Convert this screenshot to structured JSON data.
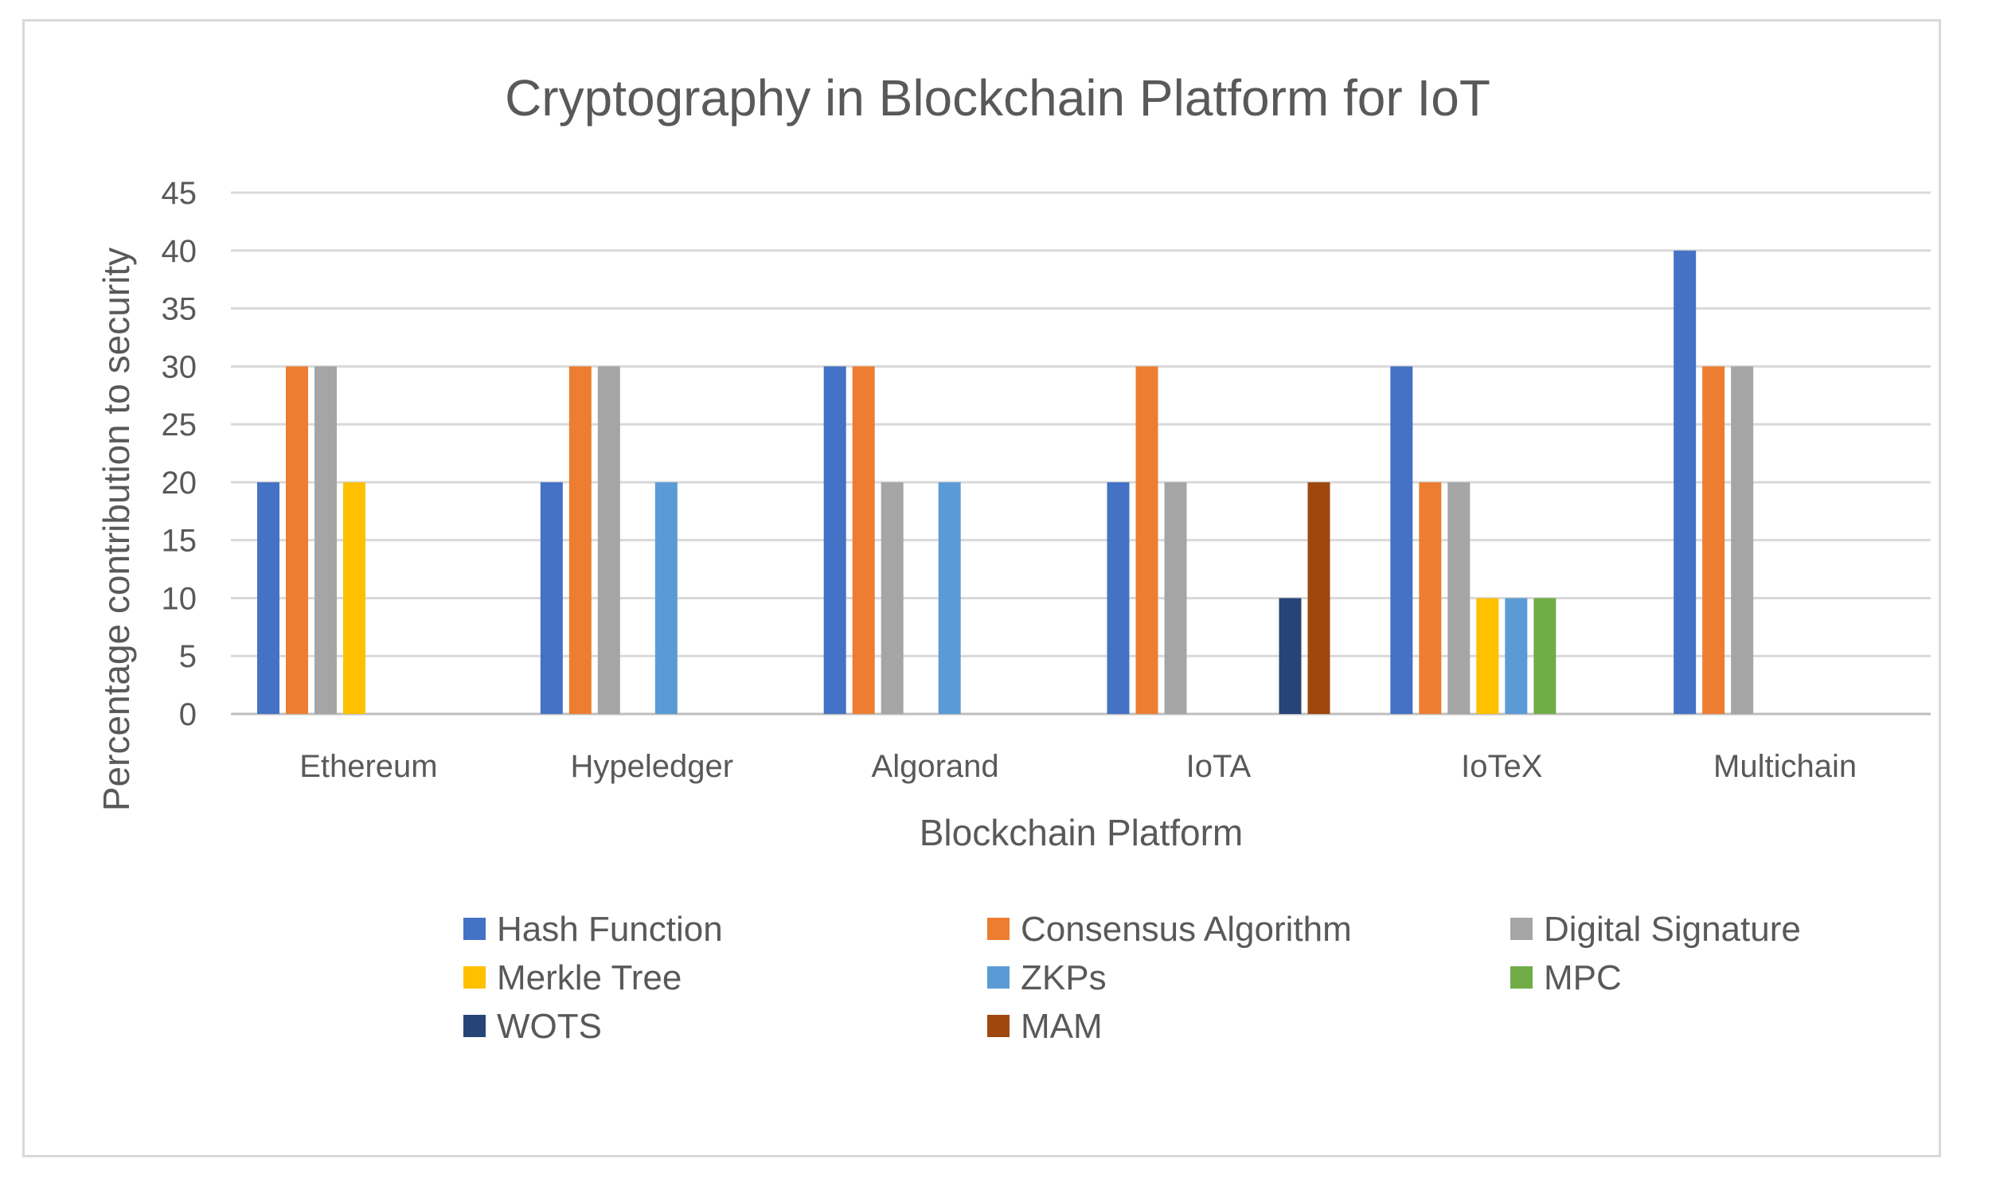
{
  "chart_data": {
    "type": "bar",
    "title": "Cryptography in Blockchain Platform for IoT",
    "xlabel": "Blockchain Platform",
    "ylabel": "Percentage contribution to security",
    "ylim": [
      0,
      45
    ],
    "yticks": [
      0,
      5,
      10,
      15,
      20,
      25,
      30,
      35,
      40,
      45
    ],
    "grid": true,
    "legend_position": "bottom",
    "categories": [
      "Ethereum",
      "Hypeledger",
      "Algorand",
      "IoTA",
      "IoTeX",
      "Multichain"
    ],
    "series": [
      {
        "name": "Hash Function",
        "color": "#4472C4",
        "values": [
          20,
          20,
          30,
          20,
          30,
          40
        ]
      },
      {
        "name": "Consensus Algorithm",
        "color": "#ED7D31",
        "values": [
          30,
          30,
          30,
          30,
          20,
          30
        ]
      },
      {
        "name": "Digital Signature",
        "color": "#A5A5A5",
        "values": [
          30,
          30,
          20,
          20,
          20,
          30
        ]
      },
      {
        "name": "Merkle Tree",
        "color": "#FFC000",
        "values": [
          20,
          0,
          0,
          0,
          10,
          0
        ]
      },
      {
        "name": "ZKPs",
        "color": "#5B9BD5",
        "values": [
          0,
          20,
          20,
          0,
          10,
          0
        ]
      },
      {
        "name": "MPC",
        "color": "#70AD47",
        "values": [
          0,
          0,
          0,
          0,
          10,
          0
        ]
      },
      {
        "name": "WOTS",
        "color": "#264478",
        "values": [
          0,
          0,
          0,
          10,
          0,
          0
        ]
      },
      {
        "name": "MAM",
        "color": "#9E480E",
        "values": [
          0,
          0,
          0,
          20,
          0,
          0
        ]
      }
    ]
  }
}
